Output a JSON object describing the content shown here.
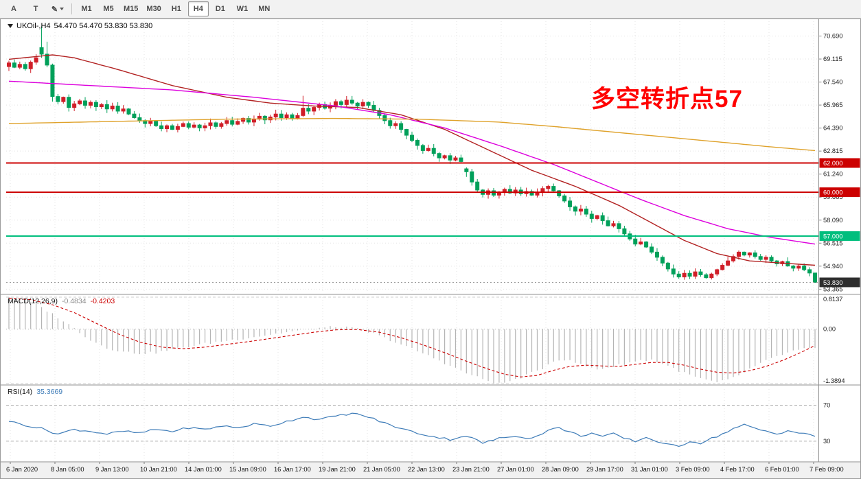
{
  "toolbar": {
    "tool_buttons": [
      {
        "label": "A"
      },
      {
        "label": "T"
      },
      {
        "label": "✎"
      }
    ],
    "timeframes": [
      "M1",
      "M5",
      "M15",
      "M30",
      "H1",
      "H4",
      "D1",
      "W1",
      "MN"
    ],
    "active_timeframe": "H4"
  },
  "chart_window": {
    "title_symbol": "UKOil-,H4",
    "title_ohlc": "54.470 54.470 53.830 53.830"
  },
  "chart_data": [
    {
      "type": "candlestick",
      "symbol": "UKOil-",
      "timeframe": "H4",
      "ohlc": {
        "open": "54.470",
        "high": "54.470",
        "low": "53.830",
        "close": "53.830"
      },
      "y_axis": {
        "price_min": 53.1,
        "price_max": 71.7,
        "ticks": [
          "70.690",
          "69.115",
          "67.540",
          "65.965",
          "64.390",
          "62.815",
          "61.240",
          "59.665",
          "58.090",
          "56.515",
          "54.940",
          "53.365"
        ]
      },
      "x_labels": [
        "6 Jan 2020",
        "8 Jan 05:00",
        "9 Jan 13:00",
        "10 Jan 21:00",
        "14 Jan 01:00",
        "15 Jan 09:00",
        "16 Jan 17:00",
        "19 Jan 21:00",
        "21 Jan 05:00",
        "22 Jan 13:00",
        "23 Jan 21:00",
        "27 Jan 01:00",
        "28 Jan 09:00",
        "29 Jan 17:00",
        "31 Jan 01:00",
        "3 Feb 09:00",
        "4 Feb 17:00",
        "6 Feb 01:00",
        "7 Feb 09:00"
      ],
      "up_color": "#D01E28",
      "down_color": "#00A05A",
      "closes": [
        68.85,
        68.55,
        68.75,
        68.45,
        68.9,
        69.2,
        69.45,
        68.7,
        66.55,
        66.2,
        66.5,
        65.8,
        66.05,
        66.25,
        65.95,
        66.15,
        65.85,
        66.0,
        65.7,
        65.9,
        65.55,
        65.7,
        65.35,
        65.1,
        64.9,
        64.7,
        64.85,
        64.55,
        64.35,
        64.55,
        64.3,
        64.5,
        64.7,
        64.45,
        64.6,
        64.4,
        64.55,
        64.75,
        64.5,
        64.7,
        64.9,
        64.65,
        64.85,
        65.05,
        64.8,
        65.0,
        65.2,
        64.95,
        65.15,
        65.35,
        65.1,
        65.3,
        65.05,
        65.25,
        65.75,
        65.55,
        65.8,
        66.0,
        65.75,
        65.95,
        66.2,
        66.0,
        66.3,
        66.1,
        65.9,
        66.15,
        65.95,
        65.6,
        65.25,
        64.9,
        64.55,
        64.7,
        64.3,
        63.9,
        63.55,
        63.2,
        62.85,
        63.0,
        62.65,
        62.35,
        62.5,
        62.2,
        62.35,
        62.1,
        61.4,
        60.7,
        60.15,
        59.85,
        60.1,
        59.8,
        60.0,
        60.2,
        59.95,
        60.15,
        59.9,
        60.05,
        59.8,
        60.0,
        60.25,
        60.4,
        60.1,
        59.75,
        59.4,
        59.0,
        58.7,
        58.85,
        58.5,
        58.2,
        58.4,
        58.05,
        57.7,
        57.85,
        57.5,
        57.15,
        56.8,
        56.45,
        56.6,
        56.25,
        55.9,
        55.55,
        55.15,
        54.75,
        54.4,
        54.2,
        54.45,
        54.25,
        54.55,
        54.35,
        54.15,
        54.4,
        54.7,
        55.0,
        55.3,
        55.6,
        55.9,
        55.7,
        55.85,
        55.6,
        55.4,
        55.55,
        55.3,
        55.1,
        55.25,
        54.95,
        54.8,
        54.95,
        54.7,
        54.47,
        53.83
      ],
      "candle_overrides": {
        "0": [
          68.6,
          69.0,
          68.3,
          68.85
        ],
        "6": [
          69.9,
          71.35,
          69.2,
          69.45
        ],
        "7": [
          69.45,
          70.3,
          68.55,
          68.7
        ],
        "8": [
          68.7,
          68.8,
          66.2,
          66.55
        ],
        "54": [
          65.25,
          66.6,
          65.15,
          65.75
        ],
        "84": [
          61.6,
          61.7,
          61.05,
          61.4
        ],
        "148": [
          54.47,
          54.47,
          53.83,
          53.83
        ]
      },
      "moving_averages": [
        {
          "name": "ma-fast",
          "color": "#B22222",
          "anchors": [
            [
              0,
              69.1
            ],
            [
              8,
              69.4
            ],
            [
              12,
              69.2
            ],
            [
              20,
              68.4
            ],
            [
              30,
              67.3
            ],
            [
              40,
              66.5
            ],
            [
              48,
              66.1
            ],
            [
              56,
              65.9
            ],
            [
              64,
              65.8
            ],
            [
              72,
              65.3
            ],
            [
              80,
              64.3
            ],
            [
              88,
              62.9
            ],
            [
              96,
              61.5
            ],
            [
              104,
              60.4
            ],
            [
              112,
              59.1
            ],
            [
              118,
              57.9
            ],
            [
              124,
              56.7
            ],
            [
              130,
              55.8
            ],
            [
              136,
              55.3
            ],
            [
              142,
              55.15
            ],
            [
              148,
              55.0
            ]
          ]
        },
        {
          "name": "ma-mid",
          "color": "#DD00DD",
          "anchors": [
            [
              0,
              67.6
            ],
            [
              15,
              67.3
            ],
            [
              30,
              67.0
            ],
            [
              45,
              66.5
            ],
            [
              60,
              65.9
            ],
            [
              70,
              65.3
            ],
            [
              80,
              64.4
            ],
            [
              90,
              63.2
            ],
            [
              100,
              61.9
            ],
            [
              108,
              60.7
            ],
            [
              116,
              59.5
            ],
            [
              124,
              58.4
            ],
            [
              132,
              57.5
            ],
            [
              140,
              56.9
            ],
            [
              148,
              56.45
            ]
          ]
        },
        {
          "name": "ma-slow",
          "color": "#DFA22B",
          "anchors": [
            [
              0,
              64.7
            ],
            [
              20,
              64.85
            ],
            [
              40,
              65.0
            ],
            [
              60,
              65.05
            ],
            [
              75,
              65.0
            ],
            [
              90,
              64.8
            ],
            [
              100,
              64.5
            ],
            [
              110,
              64.15
            ],
            [
              120,
              63.8
            ],
            [
              130,
              63.45
            ],
            [
              140,
              63.1
            ],
            [
              148,
              62.85
            ]
          ]
        }
      ],
      "hlines": [
        {
          "price": 62.0,
          "label": "62.000",
          "color": "#CC0000"
        },
        {
          "price": 60.0,
          "label": "60.000",
          "color": "#CC0000"
        },
        {
          "price": 57.0,
          "label": "57.000",
          "color": "#00BE7D"
        }
      ],
      "current_price": {
        "price": 53.83,
        "label": "53.830",
        "badge_color": "#2E2E2E"
      },
      "annotation": {
        "text": "多空转折点57",
        "color": "#FF0000"
      }
    },
    {
      "type": "macd",
      "label": "MACD(12,26,9)",
      "value_main": "-0.4834",
      "value_signal": "-0.4203",
      "scale": {
        "max": 0.8137,
        "min": -1.3894
      },
      "scale_labels": [
        "0.8137",
        "0.00",
        "-1.3894"
      ],
      "histogram_color": "#B4B4B4",
      "signal_color": "#CC0000",
      "histogram_anchors": [
        [
          0,
          0.81
        ],
        [
          3,
          0.74
        ],
        [
          6,
          0.55
        ],
        [
          9,
          0.3
        ],
        [
          12,
          0.02
        ],
        [
          15,
          -0.28
        ],
        [
          18,
          -0.48
        ],
        [
          21,
          -0.58
        ],
        [
          24,
          -0.62
        ],
        [
          27,
          -0.6
        ],
        [
          30,
          -0.52
        ],
        [
          34,
          -0.42
        ],
        [
          38,
          -0.33
        ],
        [
          42,
          -0.26
        ],
        [
          46,
          -0.18
        ],
        [
          50,
          -0.1
        ],
        [
          54,
          -0.02
        ],
        [
          58,
          0.04
        ],
        [
          61,
          0.06
        ],
        [
          64,
          0.0
        ],
        [
          67,
          -0.12
        ],
        [
          70,
          -0.28
        ],
        [
          73,
          -0.45
        ],
        [
          76,
          -0.62
        ],
        [
          79,
          -0.8
        ],
        [
          82,
          -1.0
        ],
        [
          85,
          -1.18
        ],
        [
          88,
          -1.32
        ],
        [
          90,
          -1.39
        ],
        [
          92,
          -1.33
        ],
        [
          95,
          -1.18
        ],
        [
          98,
          -1.0
        ],
        [
          100,
          -0.8
        ],
        [
          102,
          -0.78
        ],
        [
          104,
          -0.85
        ],
        [
          106,
          -0.95
        ],
        [
          108,
          -1.02
        ],
        [
          110,
          -0.98
        ],
        [
          112,
          -0.92
        ],
        [
          114,
          -0.85
        ],
        [
          116,
          -0.8
        ],
        [
          118,
          -0.78
        ],
        [
          120,
          -0.88
        ],
        [
          122,
          -1.0
        ],
        [
          124,
          -1.12
        ],
        [
          126,
          -1.22
        ],
        [
          128,
          -1.3
        ],
        [
          130,
          -1.36
        ],
        [
          132,
          -1.3
        ],
        [
          134,
          -1.18
        ],
        [
          136,
          -1.02
        ],
        [
          138,
          -0.88
        ],
        [
          140,
          -0.75
        ],
        [
          142,
          -0.65
        ],
        [
          144,
          -0.56
        ],
        [
          146,
          -0.51
        ],
        [
          148,
          -0.4834
        ]
      ],
      "signal_anchors": [
        [
          0,
          0.79
        ],
        [
          4,
          0.75
        ],
        [
          8,
          0.62
        ],
        [
          12,
          0.42
        ],
        [
          16,
          0.15
        ],
        [
          20,
          -0.12
        ],
        [
          24,
          -0.33
        ],
        [
          28,
          -0.46
        ],
        [
          32,
          -0.5
        ],
        [
          36,
          -0.46
        ],
        [
          40,
          -0.39
        ],
        [
          44,
          -0.32
        ],
        [
          48,
          -0.24
        ],
        [
          52,
          -0.16
        ],
        [
          56,
          -0.08
        ],
        [
          60,
          -0.02
        ],
        [
          64,
          -0.01
        ],
        [
          68,
          -0.08
        ],
        [
          72,
          -0.22
        ],
        [
          76,
          -0.4
        ],
        [
          80,
          -0.6
        ],
        [
          84,
          -0.82
        ],
        [
          88,
          -1.02
        ],
        [
          91,
          -1.15
        ],
        [
          94,
          -1.22
        ],
        [
          97,
          -1.18
        ],
        [
          100,
          -1.05
        ],
        [
          103,
          -0.95
        ],
        [
          106,
          -0.92
        ],
        [
          109,
          -0.94
        ],
        [
          112,
          -0.95
        ],
        [
          115,
          -0.9
        ],
        [
          118,
          -0.85
        ],
        [
          121,
          -0.85
        ],
        [
          124,
          -0.92
        ],
        [
          127,
          -1.02
        ],
        [
          130,
          -1.1
        ],
        [
          133,
          -1.12
        ],
        [
          136,
          -1.06
        ],
        [
          139,
          -0.95
        ],
        [
          142,
          -0.8
        ],
        [
          145,
          -0.62
        ],
        [
          148,
          -0.4203
        ]
      ]
    },
    {
      "type": "rsi",
      "label": "RSI(14)",
      "value": "35.3669",
      "line_color": "#3E7CB8",
      "levels": [
        {
          "value": 70,
          "label": "70"
        },
        {
          "value": 30,
          "label": "30"
        }
      ],
      "scale": {
        "max": 88,
        "min": 10
      },
      "line_anchors": [
        [
          0,
          52
        ],
        [
          3,
          48
        ],
        [
          6,
          44
        ],
        [
          9,
          38
        ],
        [
          12,
          43
        ],
        [
          15,
          41
        ],
        [
          18,
          38
        ],
        [
          21,
          41
        ],
        [
          24,
          39
        ],
        [
          27,
          43
        ],
        [
          30,
          41
        ],
        [
          33,
          45
        ],
        [
          36,
          43
        ],
        [
          39,
          47
        ],
        [
          42,
          45
        ],
        [
          45,
          49
        ],
        [
          48,
          47
        ],
        [
          51,
          52
        ],
        [
          54,
          57
        ],
        [
          57,
          54
        ],
        [
          60,
          58
        ],
        [
          63,
          61
        ],
        [
          66,
          57
        ],
        [
          69,
          50
        ],
        [
          72,
          44
        ],
        [
          75,
          39
        ],
        [
          78,
          35
        ],
        [
          81,
          32
        ],
        [
          84,
          36
        ],
        [
          87,
          28
        ],
        [
          90,
          33
        ],
        [
          93,
          36
        ],
        [
          96,
          33
        ],
        [
          99,
          42
        ],
        [
          101,
          45
        ],
        [
          103,
          40
        ],
        [
          105,
          36
        ],
        [
          107,
          39
        ],
        [
          109,
          35
        ],
        [
          111,
          38
        ],
        [
          113,
          33
        ],
        [
          115,
          30
        ],
        [
          117,
          34
        ],
        [
          119,
          30
        ],
        [
          121,
          26
        ],
        [
          123,
          24
        ],
        [
          125,
          30
        ],
        [
          127,
          28
        ],
        [
          129,
          33
        ],
        [
          131,
          38
        ],
        [
          133,
          44
        ],
        [
          135,
          48
        ],
        [
          137,
          44
        ],
        [
          139,
          41
        ],
        [
          141,
          38
        ],
        [
          143,
          42
        ],
        [
          145,
          39
        ],
        [
          147,
          37
        ],
        [
          148,
          35.37
        ]
      ]
    }
  ]
}
